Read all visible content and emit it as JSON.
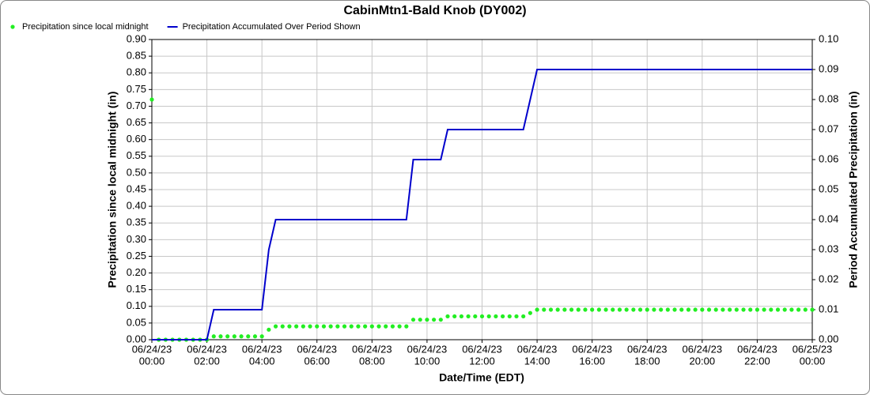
{
  "chart_data": {
    "type": "line",
    "title": "CabinMtn1-Bald Knob (DY002)",
    "x_label": "Date/Time (EDT)",
    "y_label": "Precipitation since local midnight (in)",
    "y2_label": "Period Accumulated Precipitation (in)",
    "grid": true,
    "legend": "top-left",
    "x": [
      0,
      0.25,
      0.5,
      0.75,
      1,
      1.25,
      1.5,
      1.75,
      2,
      2.25,
      2.5,
      2.75,
      3,
      3.25,
      3.5,
      3.75,
      4,
      4.25,
      4.5,
      4.75,
      5,
      5.25,
      5.5,
      5.75,
      6,
      6.25,
      6.5,
      6.75,
      7,
      7.25,
      7.5,
      7.75,
      8,
      8.25,
      8.5,
      8.75,
      9,
      9.25,
      9.5,
      9.75,
      10,
      10.25,
      10.5,
      10.75,
      11,
      11.25,
      11.5,
      11.75,
      12,
      12.25,
      12.5,
      12.75,
      13,
      13.25,
      13.5,
      13.75,
      14,
      14.25,
      14.5,
      14.75,
      15,
      15.25,
      15.5,
      15.75,
      16,
      16.25,
      16.5,
      16.75,
      17,
      17.25,
      17.5,
      17.75,
      18,
      18.25,
      18.5,
      18.75,
      19,
      19.25,
      19.5,
      19.75,
      20,
      20.25,
      20.5,
      20.75,
      21,
      21.25,
      21.5,
      21.75,
      22,
      22.25,
      22.5,
      22.75,
      23,
      23.25,
      23.5,
      23.75,
      24
    ],
    "series": [
      {
        "name": "Precipitation since local midnight",
        "color": "#22ee22",
        "mode": "markers",
        "axis": "y",
        "values": [
          0.72,
          0,
          0,
          0,
          0,
          0,
          0,
          0,
          0,
          0.01,
          0.01,
          0.01,
          0.01,
          0.01,
          0.01,
          0.01,
          0.01,
          0.03,
          0.04,
          0.04,
          0.04,
          0.04,
          0.04,
          0.04,
          0.04,
          0.04,
          0.04,
          0.04,
          0.04,
          0.04,
          0.04,
          0.04,
          0.04,
          0.04,
          0.04,
          0.04,
          0.04,
          0.04,
          0.06,
          0.06,
          0.06,
          0.06,
          0.06,
          0.07,
          0.07,
          0.07,
          0.07,
          0.07,
          0.07,
          0.07,
          0.07,
          0.07,
          0.07,
          0.07,
          0.07,
          0.08,
          0.09,
          0.09,
          0.09,
          0.09,
          0.09,
          0.09,
          0.09,
          0.09,
          0.09,
          0.09,
          0.09,
          0.09,
          0.09,
          0.09,
          0.09,
          0.09,
          0.09,
          0.09,
          0.09,
          0.09,
          0.09,
          0.09,
          0.09,
          0.09,
          0.09,
          0.09,
          0.09,
          0.09,
          0.09,
          0.09,
          0.09,
          0.09,
          0.09,
          0.09,
          0.09,
          0.09,
          0.09,
          0.09,
          0.09,
          0.09,
          0.09
        ]
      },
      {
        "name": "Precipitation Accumulated Over Period Shown",
        "color": "#0000cc",
        "mode": "line",
        "axis": "y2",
        "values": [
          0,
          0,
          0,
          0,
          0,
          0,
          0,
          0,
          0,
          0.01,
          0.01,
          0.01,
          0.01,
          0.01,
          0.01,
          0.01,
          0.01,
          0.03,
          0.04,
          0.04,
          0.04,
          0.04,
          0.04,
          0.04,
          0.04,
          0.04,
          0.04,
          0.04,
          0.04,
          0.04,
          0.04,
          0.04,
          0.04,
          0.04,
          0.04,
          0.04,
          0.04,
          0.04,
          0.06,
          0.06,
          0.06,
          0.06,
          0.06,
          0.07,
          0.07,
          0.07,
          0.07,
          0.07,
          0.07,
          0.07,
          0.07,
          0.07,
          0.07,
          0.07,
          0.07,
          0.08,
          0.09,
          0.09,
          0.09,
          0.09,
          0.09,
          0.09,
          0.09,
          0.09,
          0.09,
          0.09,
          0.09,
          0.09,
          0.09,
          0.09,
          0.09,
          0.09,
          0.09,
          0.09,
          0.09,
          0.09,
          0.09,
          0.09,
          0.09,
          0.09,
          0.09,
          0.09,
          0.09,
          0.09,
          0.09,
          0.09,
          0.09,
          0.09,
          0.09,
          0.09,
          0.09,
          0.09,
          0.09,
          0.09,
          0.09,
          0.09,
          0.09
        ]
      }
    ],
    "xlim": [
      0,
      24
    ],
    "xticks": [
      {
        "value": 0,
        "label": [
          "06/24/23",
          "00:00"
        ]
      },
      {
        "value": 2,
        "label": [
          "06/24/23",
          "02:00"
        ]
      },
      {
        "value": 4,
        "label": [
          "06/24/23",
          "04:00"
        ]
      },
      {
        "value": 6,
        "label": [
          "06/24/23",
          "06:00"
        ]
      },
      {
        "value": 8,
        "label": [
          "06/24/23",
          "08:00"
        ]
      },
      {
        "value": 10,
        "label": [
          "06/24/23",
          "10:00"
        ]
      },
      {
        "value": 12,
        "label": [
          "06/24/23",
          "12:00"
        ]
      },
      {
        "value": 14,
        "label": [
          "06/24/23",
          "14:00"
        ]
      },
      {
        "value": 16,
        "label": [
          "06/24/23",
          "16:00"
        ]
      },
      {
        "value": 18,
        "label": [
          "06/24/23",
          "18:00"
        ]
      },
      {
        "value": 20,
        "label": [
          "06/24/23",
          "20:00"
        ]
      },
      {
        "value": 22,
        "label": [
          "06/24/23",
          "22:00"
        ]
      },
      {
        "value": 24,
        "label": [
          "06/25/23",
          "00:00"
        ]
      }
    ],
    "ylim": [
      0,
      0.9
    ],
    "yticks": [
      {
        "value": 0,
        "label": "0.00"
      },
      {
        "value": 0.05,
        "label": "0.05"
      },
      {
        "value": 0.1,
        "label": "0.10"
      },
      {
        "value": 0.15,
        "label": "0.15"
      },
      {
        "value": 0.2,
        "label": "0.20"
      },
      {
        "value": 0.25,
        "label": "0.25"
      },
      {
        "value": 0.3,
        "label": "0.30"
      },
      {
        "value": 0.35,
        "label": "0.35"
      },
      {
        "value": 0.4,
        "label": "0.40"
      },
      {
        "value": 0.45,
        "label": "0.45"
      },
      {
        "value": 0.5,
        "label": "0.50"
      },
      {
        "value": 0.55,
        "label": "0.55"
      },
      {
        "value": 0.6,
        "label": "0.60"
      },
      {
        "value": 0.65,
        "label": "0.65"
      },
      {
        "value": 0.7,
        "label": "0.70"
      },
      {
        "value": 0.75,
        "label": "0.75"
      },
      {
        "value": 0.8,
        "label": "0.80"
      },
      {
        "value": 0.85,
        "label": "0.85"
      },
      {
        "value": 0.9,
        "label": "0.90"
      }
    ],
    "y2lim": [
      0,
      0.1
    ],
    "y2ticks": [
      {
        "value": 0,
        "label": "0.00"
      },
      {
        "value": 0.01,
        "label": "0.01"
      },
      {
        "value": 0.02,
        "label": "0.02"
      },
      {
        "value": 0.03,
        "label": "0.03"
      },
      {
        "value": 0.04,
        "label": "0.04"
      },
      {
        "value": 0.05,
        "label": "0.05"
      },
      {
        "value": 0.06,
        "label": "0.06"
      },
      {
        "value": 0.07,
        "label": "0.07"
      },
      {
        "value": 0.08,
        "label": "0.08"
      },
      {
        "value": 0.09,
        "label": "0.09"
      },
      {
        "value": 0.1,
        "label": "0.10"
      }
    ]
  }
}
